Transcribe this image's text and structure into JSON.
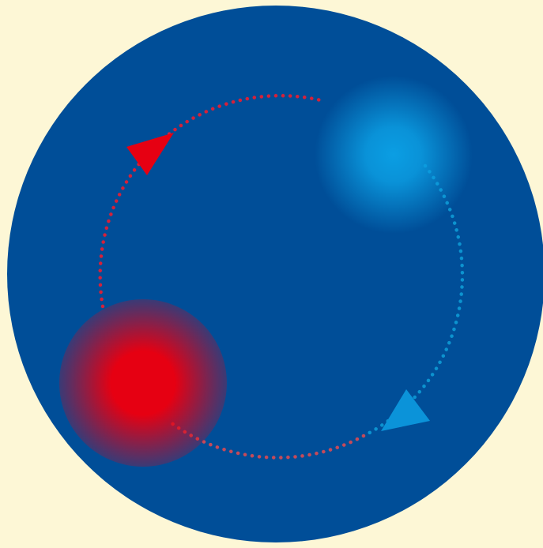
{
  "colors": {
    "background": "#fdf7d6",
    "disc": "#004e98",
    "hot_glow": "#e60012",
    "cool_glow": "#0b9ee3",
    "hot_path": "#d4213a",
    "cool_path": "#0c93cf",
    "hot_arrow": "#e60012",
    "cool_arrow": "#0b93d9"
  },
  "icons": {
    "hot_source": "red-glow-circle",
    "cool_source": "blue-glow-circle",
    "hot_arrow": "triangle-arrow",
    "cool_arrow": "triangle-arrow"
  }
}
